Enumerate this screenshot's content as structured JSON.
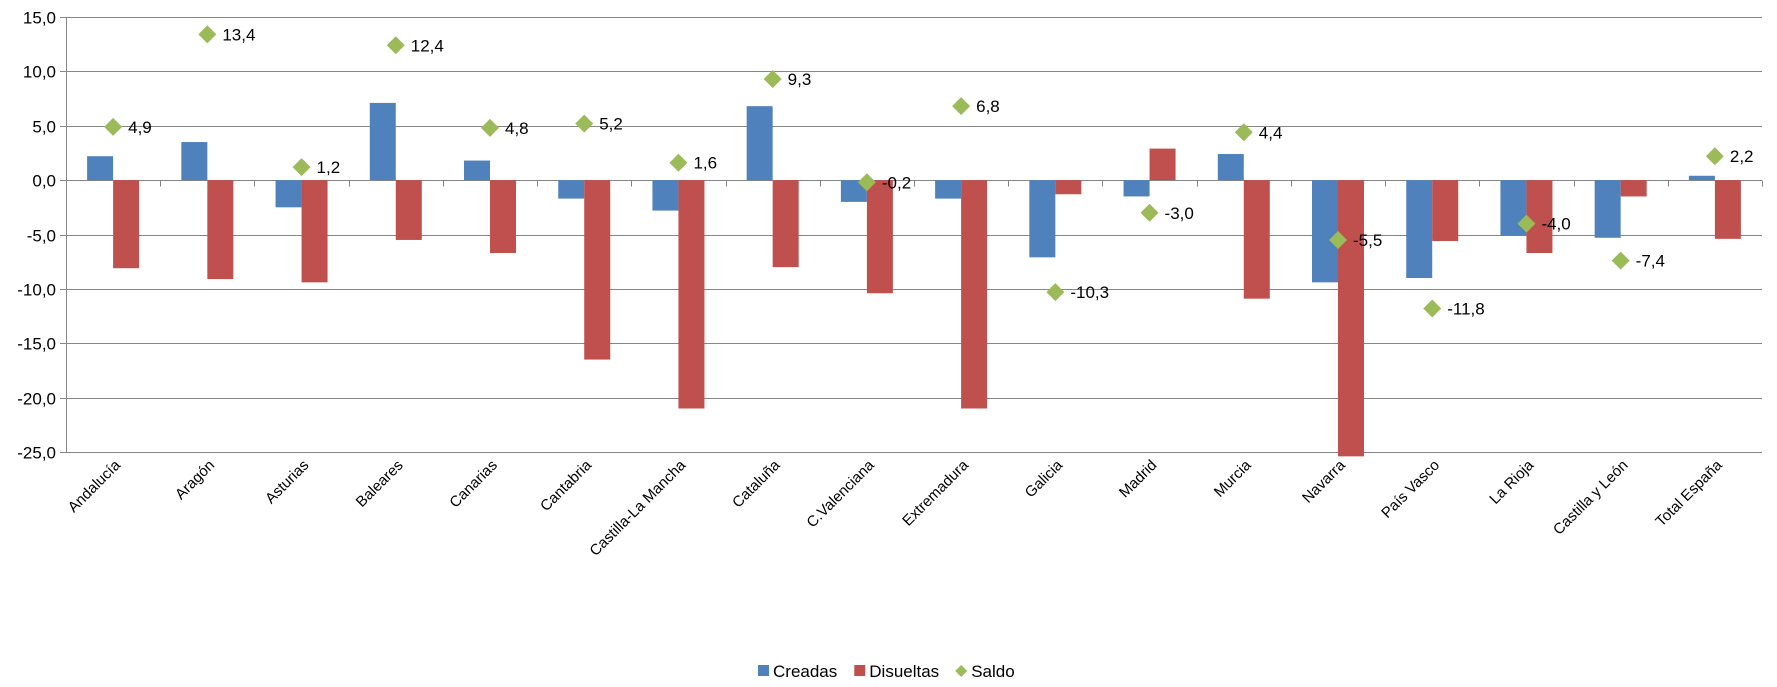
{
  "chart_data": {
    "type": "bar",
    "title": "",
    "xlabel": "",
    "ylabel": "",
    "ylim": [
      -25,
      15
    ],
    "yticks": [
      15,
      10,
      5,
      0,
      -5,
      -10,
      -15,
      -20,
      -25
    ],
    "ytick_labels": [
      "15,0",
      "10,0",
      "5,0",
      "0,0",
      "-5,0",
      "-10,0",
      "-15,0",
      "-20,0",
      "-25,0"
    ],
    "grid": true,
    "legend_position": "bottom",
    "categories": [
      "Andalucía",
      "Aragón",
      "Asturias",
      "Baleares",
      "Canarias",
      "Cantabria",
      "Castilla-La Mancha",
      "Cataluña",
      "C.Valenciana",
      "Extremadura",
      "Galicia",
      "Madrid",
      "Murcia",
      "Navarra",
      "País Vasco",
      "La Rioja",
      "Castilla y León",
      "Total España"
    ],
    "series": [
      {
        "name": "Creadas",
        "kind": "bar",
        "color": "#4F81BD",
        "values": [
          2.2,
          3.5,
          -2.5,
          7.1,
          1.8,
          -1.7,
          -2.8,
          6.8,
          -2.0,
          -1.7,
          -7.1,
          -1.5,
          2.4,
          -9.4,
          -9.0,
          -5.1,
          -5.3,
          0.4
        ]
      },
      {
        "name": "Disueltas",
        "kind": "bar",
        "color": "#C0504D",
        "values": [
          -8.1,
          -9.1,
          -9.4,
          -5.5,
          -6.7,
          -16.5,
          -21.0,
          -8.0,
          -10.4,
          -21.0,
          -1.3,
          2.9,
          -10.9,
          -25.4,
          -5.6,
          -6.7,
          -1.5,
          -5.4
        ]
      },
      {
        "name": "Saldo",
        "kind": "marker",
        "color": "#9BBB59",
        "values": [
          4.9,
          13.4,
          1.2,
          12.4,
          4.8,
          5.2,
          1.6,
          9.3,
          -0.2,
          6.8,
          -10.3,
          -3.0,
          4.4,
          -5.5,
          -11.8,
          -4.0,
          -7.4,
          2.2
        ],
        "labels": [
          "4,9",
          "13,4",
          "1,2",
          "12,4",
          "4,8",
          "5,2",
          "1,6",
          "9,3",
          "-0,2",
          "6,8",
          "-10,3",
          "-3,0",
          "4,4",
          "-5,5",
          "-11,8",
          "-4,0",
          "-7,4",
          "2,2"
        ]
      }
    ]
  }
}
